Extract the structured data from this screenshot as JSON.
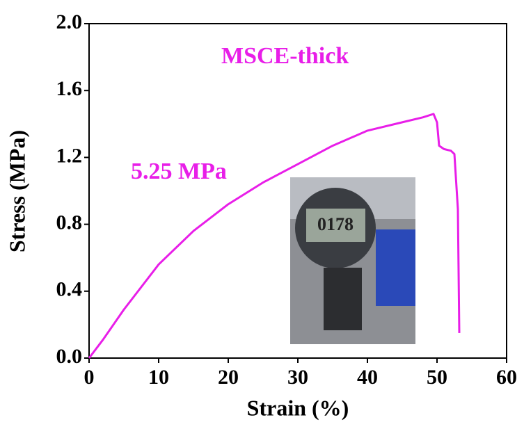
{
  "chart_data": {
    "type": "line",
    "xlabel": "Strain (%)",
    "ylabel": "Stress (MPa)",
    "annotations": [
      "MSCE-thick",
      "5.25 MPa"
    ],
    "x": [
      0,
      2,
      5,
      10,
      15,
      20,
      25,
      30,
      35,
      40,
      45,
      48,
      49.5,
      50,
      50.3,
      51,
      52,
      52.5,
      53,
      53.2
    ],
    "series": [
      {
        "name": "MSCE-thick",
        "color": "#e81ee8",
        "values": [
          0,
          0.11,
          0.29,
          0.56,
          0.76,
          0.92,
          1.05,
          1.16,
          1.27,
          1.36,
          1.41,
          1.44,
          1.46,
          1.41,
          1.27,
          1.25,
          1.24,
          1.22,
          0.89,
          0.15
        ]
      }
    ],
    "xlim": [
      0,
      60
    ],
    "xticks": [
      0,
      10,
      20,
      30,
      40,
      50,
      60
    ],
    "ylim": [
      0,
      2.0
    ],
    "yticks": [
      {
        "value": 0,
        "label": "0.0"
      },
      {
        "value": 0.4,
        "label": "0.4"
      },
      {
        "value": 0.8,
        "label": "0.8"
      },
      {
        "value": 1.2,
        "label": "1.2"
      },
      {
        "value": 1.6,
        "label": "1.6"
      },
      {
        "value": 2.0,
        "label": "2.0"
      }
    ]
  }
}
